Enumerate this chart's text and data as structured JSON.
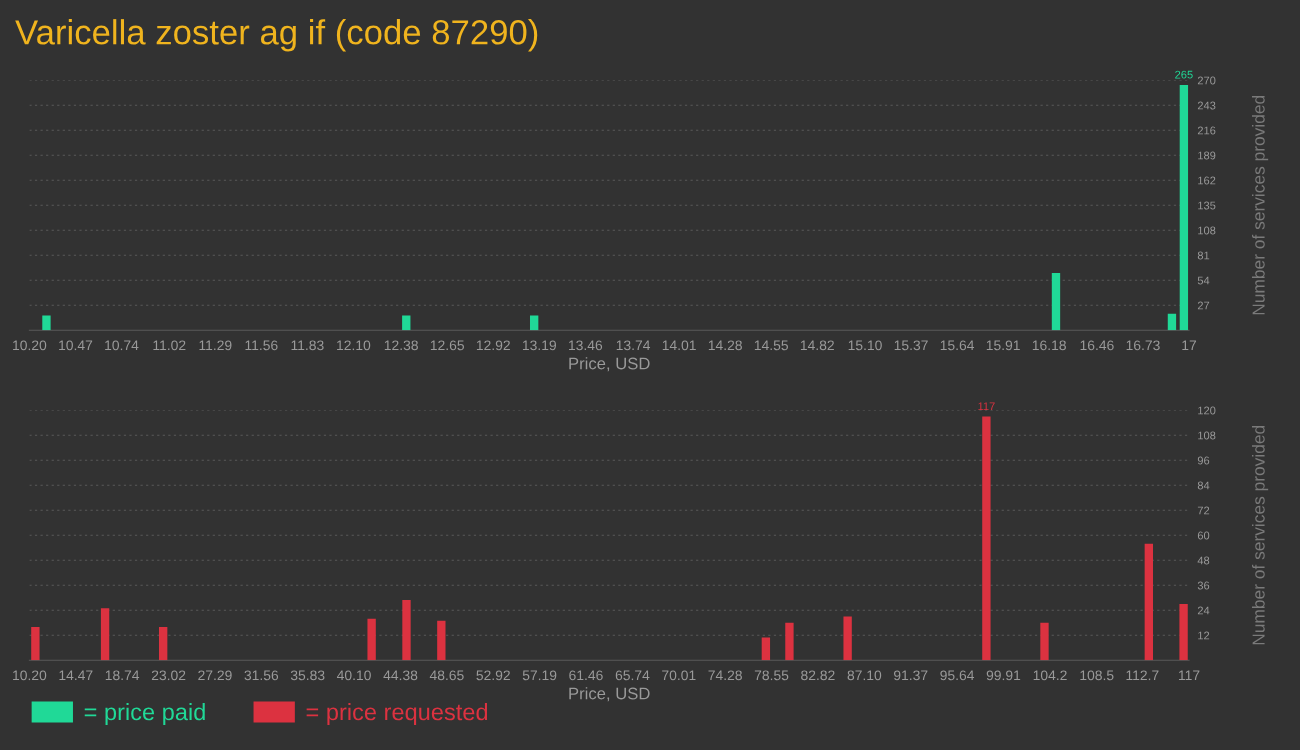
{
  "chart_data": [
    {
      "type": "bar",
      "title": "Varicella zoster ag if (code 87290)",
      "xlabel": "Price, USD",
      "ylabel": "Number of services provided",
      "x": [
        10.3,
        12.41,
        13.16,
        16.22,
        16.9,
        16.97
      ],
      "series": [
        {
          "name": "= price paid",
          "color": "#20d997",
          "values": [
            16,
            16,
            16,
            62,
            18,
            265
          ],
          "value_labels": [
            null,
            null,
            null,
            null,
            null,
            "265"
          ]
        }
      ],
      "xlim": [
        10.2,
        17
      ],
      "xticks": [
        {
          "value": 10.2,
          "label": "10.20"
        },
        10.47,
        10.74,
        11.02,
        11.29,
        11.56,
        11.83,
        {
          "value": 12.1,
          "label": "12.10"
        },
        12.38,
        12.65,
        12.92,
        13.19,
        13.46,
        13.74,
        14.01,
        14.28,
        14.55,
        14.82,
        {
          "value": 15.1,
          "label": "15.10"
        },
        15.37,
        15.64,
        15.91,
        16.18,
        16.46,
        16.73,
        17
      ],
      "ylim": [
        0,
        270
      ],
      "yticks": [
        27,
        54,
        81,
        108,
        135,
        162,
        189,
        216,
        243,
        270
      ],
      "grid": "y",
      "legend": "bottom left"
    },
    {
      "type": "bar",
      "xlabel": "Price, USD",
      "ylabel": "Number of services provided",
      "x": [
        10.75,
        17.17,
        22.52,
        41.72,
        44.93,
        48.14,
        78.03,
        80.2,
        85.56,
        98.34,
        103.69,
        113.3,
        116.5
      ],
      "series": [
        {
          "name": "= price requested",
          "color": "#dc3240",
          "values": [
            16,
            25,
            16,
            20,
            29,
            19,
            11,
            18,
            21,
            117,
            18,
            56,
            27
          ],
          "value_labels": [
            null,
            null,
            null,
            null,
            null,
            null,
            null,
            null,
            null,
            "117",
            null,
            null,
            null
          ]
        }
      ],
      "xlim": [
        10.2,
        117
      ],
      "xticks": [
        {
          "value": 10.2,
          "label": "10.20"
        },
        14.47,
        18.74,
        23.02,
        27.29,
        31.56,
        35.83,
        {
          "value": 40.1,
          "label": "40.10"
        },
        44.38,
        48.65,
        52.92,
        57.19,
        61.46,
        65.74,
        70.01,
        74.28,
        78.55,
        82.82,
        {
          "value": 87.1,
          "label": "87.10"
        },
        91.37,
        95.64,
        99.91,
        104.2,
        108.5,
        112.7,
        117
      ],
      "ylim": [
        0,
        120
      ],
      "yticks": [
        12,
        24,
        36,
        48,
        60,
        72,
        84,
        96,
        108,
        120
      ],
      "grid": "y",
      "legend": "bottom left"
    }
  ]
}
